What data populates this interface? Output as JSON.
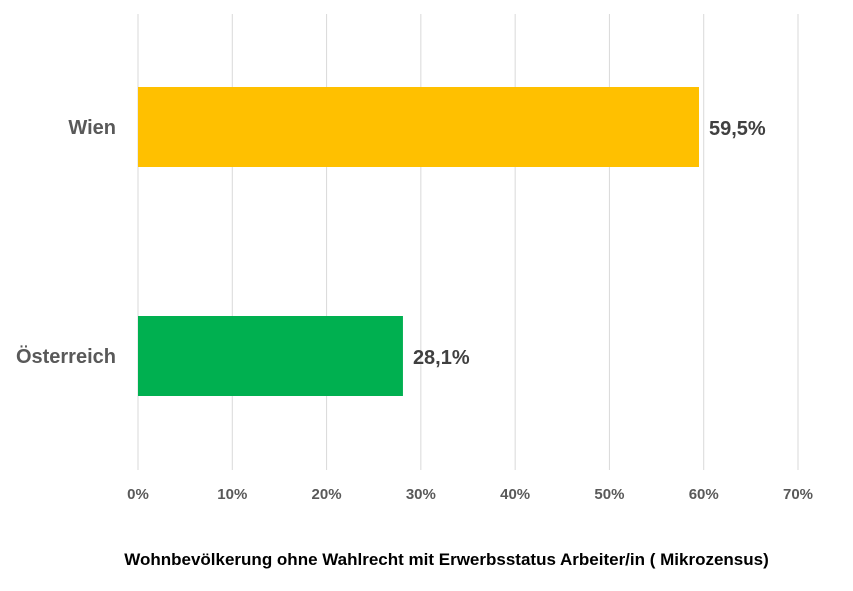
{
  "chart_data": {
    "type": "bar",
    "orientation": "horizontal",
    "categories": [
      "Wien",
      "Österreich"
    ],
    "values": [
      59.5,
      28.1
    ],
    "value_labels": [
      "59,5%",
      "28,1%"
    ],
    "colors": [
      "#FFC000",
      "#00B050"
    ],
    "xlim": [
      0,
      70
    ],
    "x_ticks": [
      0,
      10,
      20,
      30,
      40,
      50,
      60,
      70
    ],
    "x_tick_labels": [
      "0%",
      "10%",
      "20%",
      "30%",
      "40%",
      "50%",
      "60%",
      "70%"
    ],
    "grid": true,
    "legend": "none",
    "xlabel": "Wohnbevölkerung ohne Wahlrecht mit Erwerbsstatus Arbeiter/in ( Mikrozensus)"
  }
}
